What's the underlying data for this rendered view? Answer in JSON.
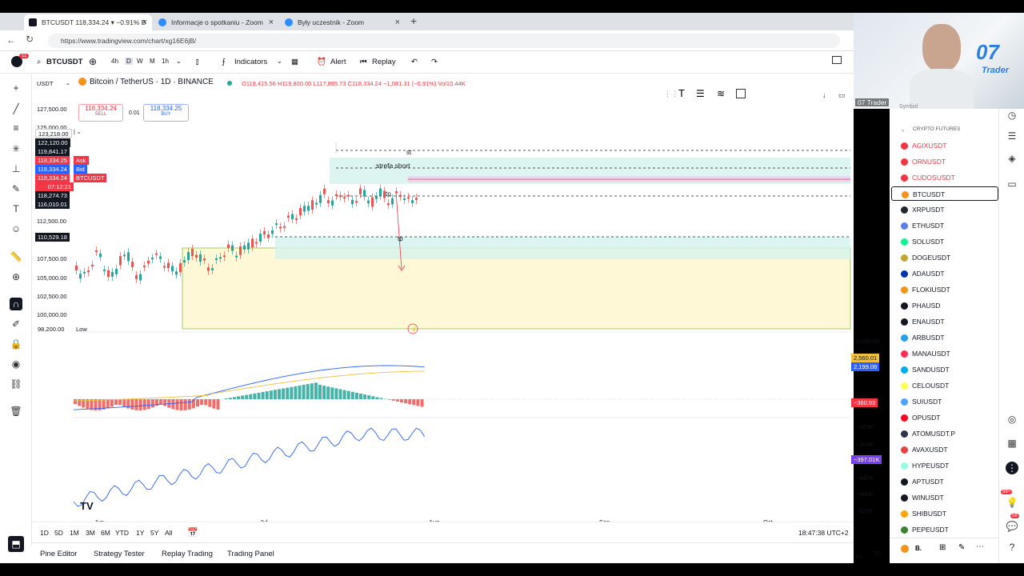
{
  "browser": {
    "tabs": [
      {
        "label": "BTCUSDT 118,334.24 ▾ −0.91% B"
      },
      {
        "label": "Informacje o spotkaniu - Zoom"
      },
      {
        "label": "Były uczestnik - Zoom"
      }
    ],
    "url": "https://www.tradingview.com/chart/xg16E6jB/"
  },
  "toolbar": {
    "symbol": "BTCUSDT",
    "intervals": [
      "4h",
      "D",
      "W",
      "M",
      "1h"
    ],
    "indicators_label": "Indicators",
    "alert_label": "Alert",
    "replay_label": "Replay"
  },
  "legend": {
    "currency": "USDT",
    "title": "Bitcoin / TetherUS · 1D · BINANCE",
    "ohlc": "O119,415.56 H119,800.00 L117,895.73 C118,334.24 −1,081.31 (−0.91%) Vol10.44K",
    "sell_price": "118,334.24",
    "sell_label": "SELL",
    "spread": "0.01",
    "buy_price": "118,334.25",
    "buy_label": "BUY"
  },
  "price_axis": {
    "ticks": [
      "127,500.00",
      "125,000.00",
      "112,500.00",
      "107,500.00",
      "105,000.00",
      "102,500.00",
      "100,000.00"
    ],
    "tags": [
      {
        "text": "123,218.00",
        "color": "#131722"
      },
      {
        "text": "122,120.00",
        "color": "#131722"
      },
      {
        "text": "119,841.17",
        "color": "#131722"
      },
      {
        "text": "118,334.25",
        "color": "#f23645",
        "label": "Ask"
      },
      {
        "text": "118,334.24",
        "color": "#2962ff",
        "label": "Bid"
      },
      {
        "text": "118,334.24",
        "color": "#f23645",
        "label": "BTCUSDT"
      },
      {
        "text": "07:12:21",
        "color": "#f23645"
      },
      {
        "text": "118,274.73",
        "color": "#131722"
      },
      {
        "text": "116,010.01",
        "color": "#131722"
      },
      {
        "text": "110,529.18",
        "color": "#131722"
      },
      {
        "text": "98,200.00",
        "color": "#ffffff",
        "label": "Low"
      }
    ]
  },
  "annotations": {
    "st": "st",
    "strefa": "strefa short",
    "tp1": "tp",
    "tp2": "tp"
  },
  "indicator_axis": {
    "macd_ticks": [
      "4,000.00",
      "0.00"
    ],
    "macd_tags": [
      "2,560.01",
      "2,199.08",
      "−360.93"
    ],
    "obv_ticks": [
      "−320K",
      "−360K",
      "−440K",
      "−480K",
      "−520K"
    ],
    "obv_tag": "−397.01K"
  },
  "time_axis": [
    "Jun",
    "Jul",
    "Aug",
    "Sep",
    "Oct"
  ],
  "bottom_bar": {
    "ranges": [
      "1D",
      "5D",
      "1M",
      "3M",
      "6M",
      "YTD",
      "1Y",
      "5Y",
      "All"
    ],
    "clock": "18:47:38 UTC+2"
  },
  "panels": [
    "Pine Editor",
    "Strategy Tester",
    "Replay Trading",
    "Trading Panel"
  ],
  "watchlist": {
    "header": "CRYPTO FUTURES",
    "symbol_col": "Symbol",
    "items": [
      {
        "label": "AGIXUSDT",
        "color": "#f23645"
      },
      {
        "label": "ORNUSDT",
        "color": "#f23645"
      },
      {
        "label": "CUDOSUSDT",
        "color": "#f23645"
      },
      {
        "label": "BTCUSDT",
        "color": "#f7931a"
      },
      {
        "label": "XRPUSDT",
        "color": "#23292f"
      },
      {
        "label": "ETHUSDT",
        "color": "#627eea"
      },
      {
        "label": "SOLUSDT",
        "color": "#14f195"
      },
      {
        "label": "DOGEUSDT",
        "color": "#c2a633"
      },
      {
        "label": "ADAUSDT",
        "color": "#0033ad"
      },
      {
        "label": "FLOKIUSDT",
        "color": "#f7931a"
      },
      {
        "label": "PHAUSD",
        "color": "#131722"
      },
      {
        "label": "ENAUSDT",
        "color": "#131722"
      },
      {
        "label": "ARBUSDT",
        "color": "#28a0f0"
      },
      {
        "label": "MANAUSDT",
        "color": "#ff2d55"
      },
      {
        "label": "SANDUSDT",
        "color": "#00adef"
      },
      {
        "label": "CELOUSDT",
        "color": "#fcff52"
      },
      {
        "label": "SUIUSDT",
        "color": "#4da2ff"
      },
      {
        "label": "OPUSDT",
        "color": "#ff0420"
      },
      {
        "label": "ATOMUSDT.P",
        "color": "#2e3148"
      },
      {
        "label": "AVAXUSDT",
        "color": "#e84142"
      },
      {
        "label": "HYPEUSDT",
        "color": "#97fce4"
      },
      {
        "label": "APTUSDT",
        "color": "#131722"
      },
      {
        "label": "WINUSDT",
        "color": "#131722"
      },
      {
        "label": "SHIBUSDT",
        "color": "#ffa409"
      },
      {
        "label": "PEPEUSDT",
        "color": "#3d8130"
      }
    ]
  },
  "camera": {
    "name": "07 Trader",
    "logo": "07",
    "logo_sub": "Trader"
  },
  "badges": {
    "notifications": "11",
    "ninety_nine": "99+",
    "fifty_eight": "58"
  },
  "colors": {
    "up": "#26a69a",
    "down": "#ef5350",
    "accent": "#2962ff"
  }
}
